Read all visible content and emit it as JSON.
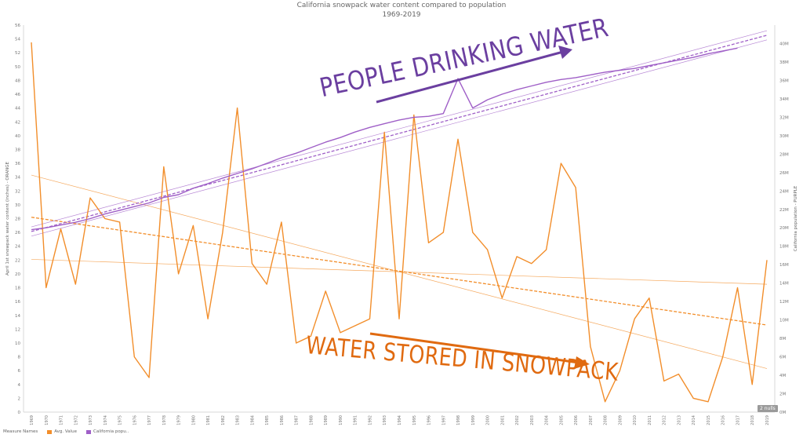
{
  "chart_data": {
    "type": "line",
    "title": "California snowpack water content compared to population",
    "subtitle": "1969-2019",
    "ylabel_left": "April 1st snowpack water content (inches) - ORANGE",
    "ylabel_right": "California population - PURPLE",
    "ylim_left": [
      0,
      56
    ],
    "ylim_right": [
      0,
      42000000
    ],
    "y_ticks_left": [
      "0",
      "2",
      "4",
      "6",
      "8",
      "10",
      "12",
      "14",
      "16",
      "18",
      "20",
      "22",
      "24",
      "26",
      "28",
      "30",
      "32",
      "34",
      "36",
      "38",
      "40",
      "42",
      "44",
      "46",
      "48",
      "50",
      "52",
      "54",
      "56"
    ],
    "y_ticks_right": [
      "0M",
      "2M",
      "4M",
      "6M",
      "8M",
      "10M",
      "12M",
      "14M",
      "16M",
      "18M",
      "20M",
      "22M",
      "24M",
      "26M",
      "28M",
      "30M",
      "32M",
      "34M",
      "36M",
      "38M",
      "40M"
    ],
    "x": [
      "1969",
      "1970",
      "1971",
      "1972",
      "1973",
      "1974",
      "1975",
      "1976",
      "1977",
      "1978",
      "1979",
      "1980",
      "1981",
      "1982",
      "1983",
      "1984",
      "1985",
      "1986",
      "1987",
      "1988",
      "1989",
      "1990",
      "1991",
      "1992",
      "1993",
      "1994",
      "1995",
      "1996",
      "1997",
      "1998",
      "1999",
      "2000",
      "2001",
      "2002",
      "2003",
      "2004",
      "2005",
      "2006",
      "2007",
      "2008",
      "2009",
      "2010",
      "2011",
      "2012",
      "2013",
      "2014",
      "2015",
      "2016",
      "2017",
      "2018",
      "2019"
    ],
    "series": [
      {
        "name": "Avg. Value",
        "axis": "left",
        "color": "#f28e2b",
        "values": [
          53.5,
          18,
          26.5,
          18.5,
          31,
          28,
          27.5,
          8,
          5,
          35.5,
          20,
          27,
          13.5,
          26,
          44,
          21.5,
          18.5,
          27.5,
          10,
          11,
          17.5,
          11.5,
          12.5,
          13.5,
          40.5,
          13.5,
          43,
          24.5,
          26,
          39.5,
          26,
          23.5,
          16.5,
          22.5,
          21.5,
          23.5,
          36,
          32.5,
          9.5,
          1.5,
          6,
          13.5,
          16.5,
          4.5,
          5.5,
          2,
          1.5,
          8,
          18,
          4,
          22
        ]
      },
      {
        "name": "California popu..",
        "axis": "right",
        "color": "#9f5fc7",
        "values": [
          19800000,
          20000000,
          20300000,
          20600000,
          21000000,
          21500000,
          21900000,
          22300000,
          22700000,
          23300000,
          23600000,
          24300000,
          24800000,
          25400000,
          25900000,
          26400000,
          27000000,
          27600000,
          28100000,
          28700000,
          29300000,
          29800000,
          30400000,
          30900000,
          31300000,
          31700000,
          32000000,
          32100000,
          32400000,
          36200000,
          33000000,
          33900000,
          34500000,
          35000000,
          35400000,
          35800000,
          36100000,
          36300000,
          36600000,
          36900000,
          37100000,
          37300000,
          37600000,
          37900000,
          38200000,
          38500000,
          38900000,
          39200000,
          39500000,
          null,
          null
        ]
      }
    ],
    "trend_lines": [
      {
        "series": "Avg. Value",
        "style": "dashed",
        "x": [
          "1969",
          "2019"
        ],
        "y": [
          28.2,
          12.6
        ]
      },
      {
        "series": "Avg. Value",
        "style": "band",
        "x": [
          "1969",
          "2019"
        ],
        "y": [
          34.3,
          6.3
        ]
      },
      {
        "series": "Avg. Value",
        "style": "band",
        "x": [
          "1969",
          "2019"
        ],
        "y": [
          22.1,
          18.5
        ]
      },
      {
        "series": "California popu..",
        "style": "dashed",
        "x": [
          "1969",
          "2019"
        ],
        "y": [
          19600000,
          40900000
        ]
      },
      {
        "series": "California popu..",
        "style": "band",
        "x": [
          "1969",
          "2019"
        ],
        "y": [
          20100000,
          41400000
        ]
      },
      {
        "series": "California popu..",
        "style": "band",
        "x": [
          "1969",
          "2019"
        ],
        "y": [
          19100000,
          40400000
        ]
      }
    ],
    "grid": false,
    "legend": {
      "title": "Measure Names",
      "items": [
        {
          "label": "Avg. Value",
          "color": "#f28e2b"
        },
        {
          "label": "California popu..",
          "color": "#9f5fc7"
        }
      ]
    },
    "nulls_badge": "2 nulls",
    "annotations": [
      {
        "text": "PEOPLE DRINKING WATER",
        "color": "#6b3fa0"
      },
      {
        "text": "WATER STORED IN SNOWPACK",
        "color": "#e06a10"
      }
    ]
  }
}
